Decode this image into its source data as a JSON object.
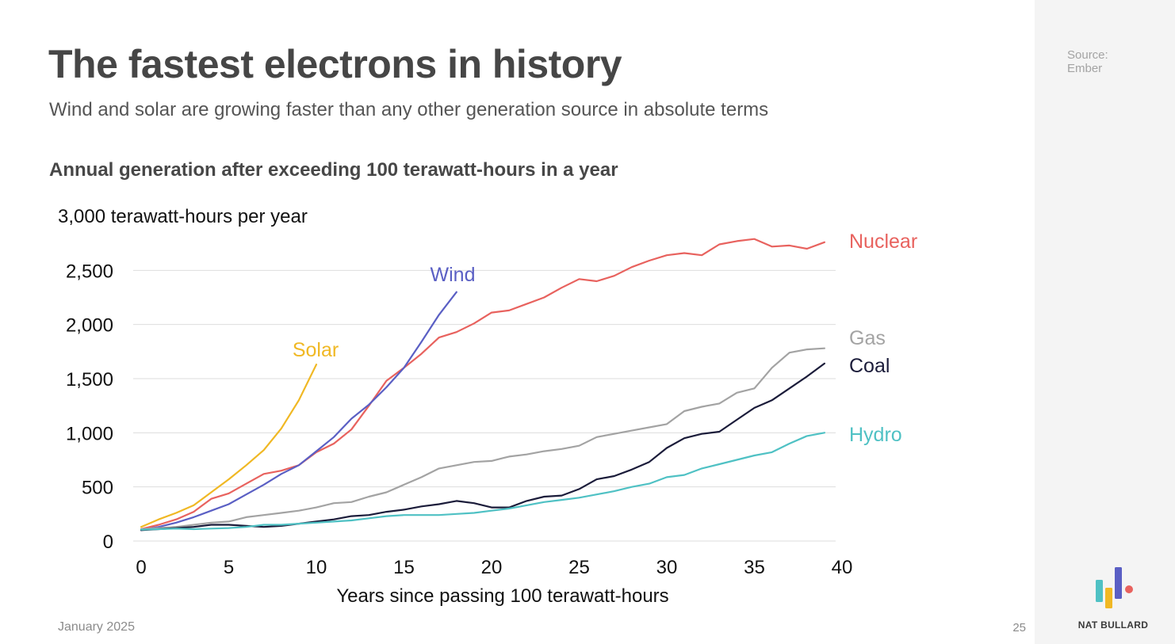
{
  "slide": {
    "title": "The fastest electrons in history",
    "subtitle": "Wind and solar are growing faster than any other generation source in absolute terms",
    "source": [
      "Source:",
      "Ember"
    ],
    "date": "January 2025",
    "page_number": "25",
    "brand": "NAT BULLARD"
  },
  "colors": {
    "nuclear": "#e8625e",
    "wind": "#5a5fc4",
    "solar": "#f0b824",
    "gas": "#a3a3a3",
    "coal": "#1b1c3a",
    "hydro": "#4fc1c4",
    "grid": "#dddddd",
    "logo_teal": "#4fc1c4",
    "logo_yellow": "#f0b824",
    "logo_purple": "#5a5fc4",
    "logo_red": "#e8625e"
  },
  "chart_data": {
    "type": "line",
    "title": "Annual generation after exceeding 100 terawatt-hours in a year",
    "ylabel": "3,000 terawatt-hours per year",
    "xlabel": "Years since passing 100 terawatt-hours",
    "xlim": [
      0,
      40
    ],
    "ylim": [
      0,
      3000
    ],
    "xticks": [
      0,
      5,
      10,
      15,
      20,
      25,
      30,
      35,
      40
    ],
    "yticks": [
      0,
      500,
      1000,
      1500,
      2000,
      2500
    ],
    "ytick_labels": [
      "0",
      "500",
      "1,000",
      "1,500",
      "2,000",
      "2,500"
    ],
    "grid": true,
    "series": [
      {
        "name": "Nuclear",
        "color_key": "nuclear",
        "x": [
          0,
          1,
          2,
          3,
          4,
          5,
          6,
          7,
          8,
          9,
          10,
          11,
          12,
          13,
          14,
          15,
          16,
          17,
          18,
          19,
          20,
          21,
          22,
          23,
          24,
          25,
          26,
          27,
          28,
          29,
          30,
          31,
          32,
          33,
          34,
          35,
          36,
          37,
          38,
          39
        ],
        "values": [
          110,
          150,
          200,
          270,
          390,
          440,
          530,
          620,
          650,
          700,
          820,
          900,
          1030,
          1250,
          1480,
          1600,
          1730,
          1880,
          1930,
          2010,
          2110,
          2130,
          2190,
          2250,
          2340,
          2420,
          2400,
          2450,
          2530,
          2590,
          2640,
          2660,
          2640,
          2740,
          2770,
          2790,
          2720,
          2730,
          2700,
          2760
        ]
      },
      {
        "name": "Wind",
        "color_key": "wind",
        "x": [
          0,
          1,
          2,
          3,
          4,
          5,
          6,
          7,
          8,
          9,
          10,
          11,
          12,
          13,
          14,
          15,
          16,
          17,
          18
        ],
        "values": [
          100,
          130,
          170,
          220,
          280,
          340,
          430,
          520,
          620,
          700,
          830,
          960,
          1130,
          1260,
          1420,
          1600,
          1840,
          2090,
          2300
        ]
      },
      {
        "name": "Solar",
        "color_key": "solar",
        "x": [
          0,
          1,
          2,
          3,
          4,
          5,
          6,
          7,
          8,
          9,
          10
        ],
        "values": [
          130,
          200,
          260,
          330,
          450,
          570,
          700,
          840,
          1040,
          1300,
          1630
        ]
      },
      {
        "name": "Gas",
        "color_key": "gas",
        "x": [
          0,
          1,
          2,
          3,
          4,
          5,
          6,
          7,
          8,
          9,
          10,
          11,
          12,
          13,
          14,
          15,
          16,
          17,
          18,
          19,
          20,
          21,
          22,
          23,
          24,
          25,
          26,
          27,
          28,
          29,
          30,
          31,
          32,
          33,
          34,
          35,
          36,
          37,
          38,
          39
        ],
        "values": [
          110,
          120,
          130,
          150,
          170,
          180,
          220,
          240,
          260,
          280,
          310,
          350,
          360,
          410,
          450,
          520,
          590,
          670,
          700,
          730,
          740,
          780,
          800,
          830,
          850,
          880,
          960,
          990,
          1020,
          1050,
          1080,
          1200,
          1240,
          1270,
          1370,
          1410,
          1600,
          1740,
          1770,
          1780
        ]
      },
      {
        "name": "Coal",
        "color_key": "coal",
        "x": [
          0,
          1,
          2,
          3,
          4,
          5,
          6,
          7,
          8,
          9,
          10,
          11,
          12,
          13,
          14,
          15,
          16,
          17,
          18,
          19,
          20,
          21,
          22,
          23,
          24,
          25,
          26,
          27,
          28,
          29,
          30,
          31,
          32,
          33,
          34,
          35,
          36,
          37,
          38,
          39
        ],
        "values": [
          100,
          110,
          120,
          130,
          150,
          150,
          140,
          130,
          140,
          160,
          180,
          200,
          230,
          240,
          270,
          290,
          320,
          340,
          370,
          350,
          310,
          310,
          370,
          410,
          420,
          480,
          570,
          600,
          660,
          730,
          860,
          950,
          990,
          1010,
          1120,
          1230,
          1300,
          1410,
          1520,
          1640
        ]
      },
      {
        "name": "Hydro",
        "color_key": "hydro",
        "x": [
          0,
          1,
          2,
          3,
          4,
          5,
          6,
          7,
          8,
          9,
          10,
          11,
          12,
          13,
          14,
          15,
          16,
          17,
          18,
          19,
          20,
          21,
          22,
          23,
          24,
          25,
          26,
          27,
          28,
          29,
          30,
          31,
          32,
          33,
          34,
          35,
          36,
          37,
          38,
          39
        ],
        "values": [
          105,
          110,
          115,
          110,
          115,
          120,
          130,
          150,
          150,
          160,
          170,
          180,
          190,
          210,
          230,
          240,
          240,
          240,
          250,
          260,
          280,
          300,
          330,
          360,
          380,
          400,
          430,
          460,
          500,
          530,
          590,
          610,
          670,
          710,
          750,
          790,
          820,
          900,
          970,
          1000
        ]
      }
    ]
  }
}
